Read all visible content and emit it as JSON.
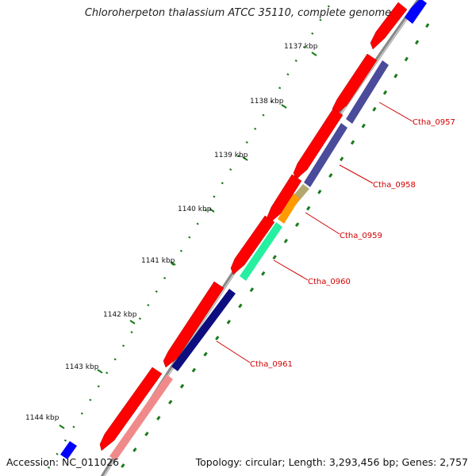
{
  "title": "Chloroherpeton thalassium ATCC 35110, complete genome",
  "footer": {
    "accession": "Accession: NC_011026",
    "topology": "Topology: circular; Length: 3,293,456 bp; Genes: 2,757"
  },
  "ticks": [
    "1137 kbp",
    "1138 kbp",
    "1139 kbp",
    "1140 kbp",
    "1141 kbp",
    "1142 kbp",
    "1143 kbp",
    "1144 kbp"
  ],
  "gene_labels": [
    "Ctha_0957",
    "Ctha_0958",
    "Ctha_0959",
    "Ctha_0960",
    "Ctha_0961"
  ],
  "colors": {
    "forward_gene": "#ff0000",
    "reverse_gene_blue": "#4b4b9b",
    "reverse_gene_navy": "#0d0d80",
    "gene_orange": "#ff9a00",
    "gene_olive": "#b3a870",
    "gene_green": "#26f0a0",
    "gene_pink": "#f08a8a",
    "gene_bright_blue": "#0000ff",
    "label_red": "#d00000",
    "tick_green": "#1a7a1a"
  }
}
